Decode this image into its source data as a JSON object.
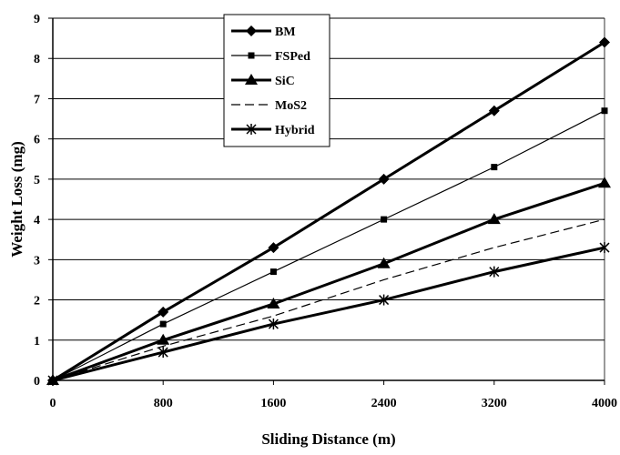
{
  "chart_data": {
    "type": "line",
    "title": "",
    "xlabel": "Sliding Distance (m)",
    "ylabel": "Weight Loss (mg)",
    "x": [
      0,
      800,
      1600,
      2400,
      3200,
      4000
    ],
    "x_tick_labels": [
      "0",
      "800",
      "1600",
      "2400",
      "3200",
      "4000"
    ],
    "y_tick_labels": [
      "0",
      "1",
      "2",
      "3",
      "4",
      "5",
      "6",
      "7",
      "8",
      "9"
    ],
    "xlim": [
      0,
      4000
    ],
    "ylim": [
      0,
      9
    ],
    "grid": "horizontal",
    "legend_position": "top-center",
    "series": [
      {
        "name": "BM",
        "values": [
          0,
          1.7,
          3.3,
          5.0,
          6.7,
          8.4
        ],
        "marker": "diamond",
        "line": "thick-solid",
        "color": "#000000"
      },
      {
        "name": "FSPed",
        "values": [
          0,
          1.4,
          2.7,
          4.0,
          5.3,
          6.7
        ],
        "marker": "square",
        "line": "thin-solid",
        "color": "#000000"
      },
      {
        "name": "SiC",
        "values": [
          0,
          1.0,
          1.9,
          2.9,
          4.0,
          4.9
        ],
        "marker": "triangle",
        "line": "thick-solid",
        "color": "#000000"
      },
      {
        "name": "MoS2",
        "values": [
          0,
          0.85,
          1.6,
          2.5,
          3.3,
          4.0
        ],
        "marker": "none",
        "line": "dashed",
        "color": "#000000"
      },
      {
        "name": "Hybrid",
        "values": [
          0,
          0.7,
          1.4,
          2.0,
          2.7,
          3.3
        ],
        "marker": "asterisk",
        "line": "thick-solid",
        "color": "#000000"
      }
    ]
  }
}
